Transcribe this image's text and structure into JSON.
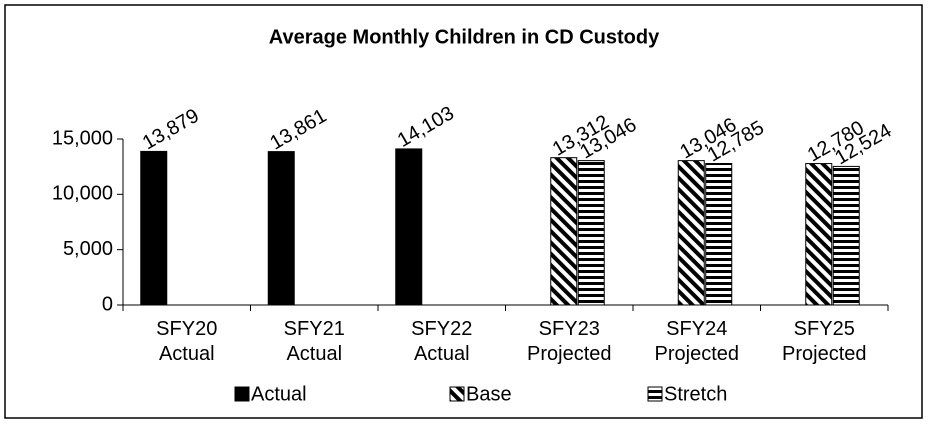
{
  "chart_data": {
    "type": "bar",
    "title": "Average Monthly Children in CD Custody",
    "categories": [
      "SFY20 Actual",
      "SFY21 Actual",
      "SFY22 Actual",
      "SFY23 Projected",
      "SFY24 Projected",
      "SFY25 Projected"
    ],
    "series": [
      {
        "name": "Actual",
        "color": "#000000",
        "pattern": "solid",
        "values": [
          13879,
          13861,
          14103,
          null,
          null,
          null
        ],
        "value_labels": [
          "13,879",
          "13,861",
          "14,103",
          null,
          null,
          null
        ]
      },
      {
        "name": "Base",
        "color": "#000000",
        "pattern": "diagonal",
        "values": [
          null,
          null,
          null,
          13312,
          13046,
          12780
        ],
        "value_labels": [
          null,
          null,
          null,
          "13,312",
          "13,046",
          "12,780"
        ]
      },
      {
        "name": "Stretch",
        "color": "#000000",
        "pattern": "horizontal",
        "values": [
          null,
          null,
          null,
          13046,
          12785,
          12524
        ],
        "value_labels": [
          null,
          null,
          null,
          "13,046",
          "12,785",
          "12,524"
        ]
      }
    ],
    "ylim": [
      0,
      15000
    ],
    "yticks": [
      0,
      {
        "value": 5000,
        "label": "5,000"
      },
      {
        "value": 10000,
        "label": "10,000"
      },
      {
        "value": 15000,
        "label": "15,000"
      }
    ],
    "grid": false,
    "legend": "bottom"
  }
}
